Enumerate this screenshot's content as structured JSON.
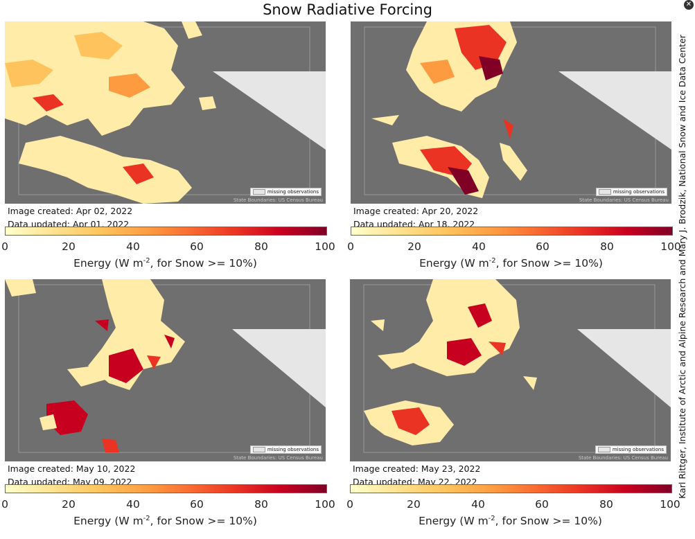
{
  "figure": {
    "title": "Snow Radiative Forcing",
    "credit": "Karl Rittger, Institute of Arctic and Alpine Research and Mary J. Brodzik, National Snow and Ice Data Center"
  },
  "legend": {
    "missing_label": "missing observations",
    "source": "State Boundaries: US Census Bureau"
  },
  "colorbar": {
    "ticks": [
      "0",
      "20",
      "40",
      "60",
      "80",
      "100"
    ],
    "label_pre": "Energy (W m",
    "label_sup": "-2",
    "label_post": ", for Snow >= 10%)",
    "colors": [
      "#ffffcc",
      "#fec35c",
      "#fd9b40",
      "#ea3323",
      "#800026"
    ]
  },
  "panels": [
    {
      "created": "Image created: Apr 02, 2022",
      "updated": "Data updated: Apr 01, 2022"
    },
    {
      "created": "Image created: Apr 20, 2022",
      "updated": "Data updated: Apr 18, 2022"
    },
    {
      "created": "Image created: May 10, 2022",
      "updated": "Data updated: May 09, 2022"
    },
    {
      "created": "Image created: May 23, 2022",
      "updated": "Data updated: May 22, 2022"
    }
  ],
  "colors": {
    "map_background": "#6f6f6f",
    "missing": "#e6e6e6"
  }
}
